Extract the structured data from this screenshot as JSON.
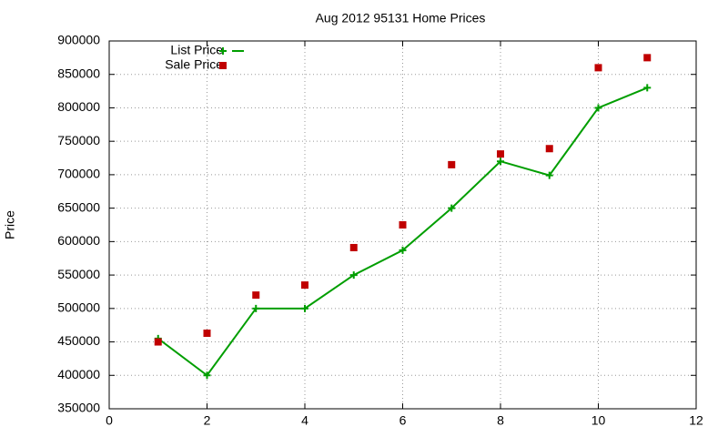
{
  "chart_data": {
    "type": "line",
    "title": "Aug 2012 95131 Home Prices",
    "y_label": "Price",
    "xlim": [
      0,
      12
    ],
    "xticks": [
      0,
      2,
      4,
      6,
      8,
      10,
      12
    ],
    "ylim": [
      350000,
      900000
    ],
    "yticks": [
      350000,
      400000,
      450000,
      500000,
      550000,
      600000,
      650000,
      700000,
      750000,
      800000,
      850000,
      900000
    ],
    "grid": true,
    "legend": "top-left",
    "x": [
      1,
      2,
      3,
      4,
      5,
      6,
      7,
      8,
      9,
      10,
      11
    ],
    "series": [
      {
        "name": "List Price",
        "color": "#009e00",
        "line": true,
        "marker": "plus",
        "values": [
          455000,
          400000,
          500000,
          500000,
          550000,
          587000,
          650000,
          720000,
          699000,
          800000,
          830000
        ]
      },
      {
        "name": "Sale Price",
        "color": "#c00000",
        "line": false,
        "marker": "square",
        "values": [
          450000,
          463000,
          520000,
          535000,
          591000,
          625000,
          715000,
          731000,
          739000,
          860000,
          875000
        ]
      }
    ]
  }
}
